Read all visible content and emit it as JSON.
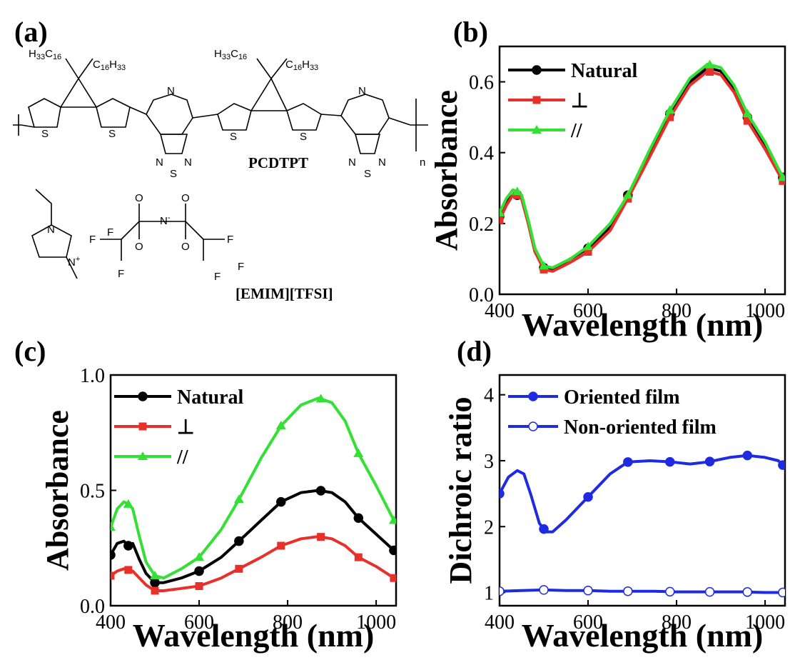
{
  "panels": {
    "a": "(a)",
    "b": "(b)",
    "c": "(c)",
    "d": "(d)"
  },
  "chemistry": {
    "polymer_name": "PCDTPT",
    "salt_name": "[EMIM][TFSI]",
    "h33c16": "H",
    "c16h33": "C",
    "sub_33": "33",
    "sub_16": "16",
    "sub_n": "n",
    "atom_S": "S",
    "atom_N": "N",
    "atom_F": "F",
    "atom_O": "O",
    "atom_Nminus": "N",
    "minus": "-",
    "plus": "+"
  },
  "colors": {
    "natural": "#000000",
    "perp": "#e8302a",
    "parallel": "#33e033",
    "oriented": "#1f2be0"
  },
  "chart_data": [
    {
      "type": "line",
      "panel": "b",
      "xlabel": "Wavelength (nm)",
      "ylabel": "Absorbance",
      "xlim": [
        400,
        1045
      ],
      "ylim": [
        0.0,
        0.7
      ],
      "xticks": [
        "400",
        "600",
        "800",
        "1000"
      ],
      "yticks": [
        "0.0",
        "0.2",
        "0.4",
        "0.6"
      ],
      "xtick_values": [
        400,
        600,
        800,
        1000
      ],
      "ytick_values": [
        0.0,
        0.2,
        0.4,
        0.6
      ],
      "legend": "top-left",
      "series": [
        {
          "name": "Natural",
          "marker": "circle",
          "color": "#000000",
          "x": [
            400,
            415,
            430,
            440,
            450,
            465,
            480,
            500,
            520,
            560,
            600,
            650,
            690,
            740,
            785,
            830,
            870,
            900,
            930,
            960,
            1000,
            1040
          ],
          "y": [
            0.22,
            0.26,
            0.28,
            0.28,
            0.27,
            0.2,
            0.12,
            0.075,
            0.07,
            0.1,
            0.13,
            0.19,
            0.28,
            0.4,
            0.51,
            0.6,
            0.64,
            0.63,
            0.58,
            0.5,
            0.42,
            0.33
          ],
          "marker_x": [
            400,
            440,
            500,
            600,
            690,
            785,
            875,
            960,
            1040
          ]
        },
        {
          "name": "⊥",
          "marker": "square",
          "color": "#e8302a",
          "x": [
            400,
            415,
            430,
            440,
            450,
            465,
            480,
            500,
            520,
            560,
            600,
            650,
            690,
            740,
            785,
            830,
            870,
            900,
            930,
            960,
            1000,
            1040
          ],
          "y": [
            0.21,
            0.25,
            0.28,
            0.28,
            0.27,
            0.2,
            0.12,
            0.07,
            0.065,
            0.09,
            0.12,
            0.18,
            0.27,
            0.39,
            0.5,
            0.59,
            0.63,
            0.62,
            0.57,
            0.49,
            0.41,
            0.32
          ],
          "marker_x": [
            400,
            440,
            500,
            600,
            690,
            785,
            875,
            960,
            1040
          ]
        },
        {
          "name": "//",
          "marker": "triangle",
          "color": "#33e033",
          "x": [
            400,
            415,
            430,
            440,
            450,
            465,
            480,
            500,
            520,
            560,
            600,
            650,
            690,
            740,
            785,
            830,
            870,
            900,
            930,
            960,
            1000,
            1040
          ],
          "y": [
            0.23,
            0.27,
            0.295,
            0.29,
            0.28,
            0.21,
            0.13,
            0.08,
            0.075,
            0.1,
            0.135,
            0.2,
            0.28,
            0.41,
            0.52,
            0.61,
            0.65,
            0.64,
            0.59,
            0.51,
            0.43,
            0.33
          ],
          "marker_x": [
            400,
            440,
            500,
            600,
            690,
            785,
            875,
            960,
            1040
          ]
        }
      ]
    },
    {
      "type": "line",
      "panel": "c",
      "xlabel": "Wavelength (nm)",
      "ylabel": "Absorbance",
      "xlim": [
        400,
        1045
      ],
      "ylim": [
        0.0,
        1.0
      ],
      "xticks": [
        "400",
        "600",
        "800",
        "1000"
      ],
      "yticks": [
        "0.0",
        "0.5",
        "1.0"
      ],
      "xtick_values": [
        400,
        600,
        800,
        1000
      ],
      "ytick_values": [
        0.0,
        0.5,
        1.0
      ],
      "legend": "top-left",
      "series": [
        {
          "name": "Natural",
          "marker": "circle",
          "color": "#000000",
          "x": [
            400,
            415,
            430,
            440,
            450,
            465,
            480,
            500,
            520,
            560,
            600,
            650,
            690,
            740,
            785,
            830,
            870,
            900,
            930,
            960,
            1000,
            1040
          ],
          "y": [
            0.22,
            0.27,
            0.28,
            0.26,
            0.27,
            0.2,
            0.14,
            0.1,
            0.1,
            0.12,
            0.15,
            0.21,
            0.28,
            0.37,
            0.45,
            0.49,
            0.5,
            0.49,
            0.45,
            0.38,
            0.31,
            0.24
          ],
          "marker_x": [
            400,
            440,
            500,
            600,
            690,
            785,
            875,
            960,
            1040
          ]
        },
        {
          "name": "⊥",
          "marker": "square",
          "color": "#e8302a",
          "x": [
            400,
            415,
            430,
            440,
            450,
            465,
            480,
            500,
            520,
            560,
            600,
            650,
            690,
            740,
            785,
            830,
            870,
            900,
            930,
            960,
            1000,
            1040
          ],
          "y": [
            0.13,
            0.15,
            0.16,
            0.155,
            0.15,
            0.12,
            0.09,
            0.065,
            0.065,
            0.075,
            0.085,
            0.12,
            0.16,
            0.21,
            0.26,
            0.29,
            0.3,
            0.29,
            0.26,
            0.21,
            0.17,
            0.12
          ],
          "marker_x": [
            400,
            440,
            500,
            600,
            690,
            785,
            875,
            960,
            1040
          ]
        },
        {
          "name": "//",
          "marker": "triangle",
          "color": "#33e033",
          "x": [
            400,
            415,
            430,
            440,
            450,
            465,
            480,
            500,
            520,
            560,
            600,
            650,
            690,
            740,
            785,
            830,
            870,
            900,
            930,
            960,
            1000,
            1040
          ],
          "y": [
            0.34,
            0.42,
            0.45,
            0.44,
            0.42,
            0.3,
            0.19,
            0.13,
            0.12,
            0.16,
            0.21,
            0.33,
            0.46,
            0.64,
            0.78,
            0.87,
            0.9,
            0.88,
            0.8,
            0.66,
            0.52,
            0.37
          ],
          "marker_x": [
            400,
            440,
            500,
            600,
            690,
            785,
            875,
            960,
            1040
          ]
        }
      ]
    },
    {
      "type": "line",
      "panel": "d",
      "xlabel": "Wavelength (nm)",
      "ylabel": "Dichroic ratio",
      "xlim": [
        400,
        1045
      ],
      "ylim": [
        0.8,
        4.3
      ],
      "xticks": [
        "400",
        "600",
        "800",
        "1000"
      ],
      "yticks": [
        "1",
        "2",
        "3",
        "4"
      ],
      "xtick_values": [
        400,
        600,
        800,
        1000
      ],
      "ytick_values": [
        1,
        2,
        3,
        4
      ],
      "legend": "top-left",
      "series": [
        {
          "name": "Oriented film",
          "marker": "filled-circle",
          "color": "#1f2be0",
          "x": [
            400,
            420,
            440,
            455,
            470,
            490,
            505,
            520,
            550,
            600,
            650,
            690,
            740,
            790,
            830,
            870,
            920,
            960,
            1000,
            1030,
            1045
          ],
          "y": [
            2.5,
            2.75,
            2.85,
            2.8,
            2.5,
            2.05,
            1.92,
            1.92,
            2.1,
            2.45,
            2.8,
            2.98,
            3.0,
            2.98,
            2.95,
            2.98,
            3.05,
            3.08,
            3.05,
            3.0,
            2.9
          ],
          "marker_x": [
            400,
            500,
            600,
            690,
            785,
            875,
            960,
            1040
          ]
        },
        {
          "name": "Non-oriented film",
          "marker": "open-circle",
          "color": "#1f2be0",
          "x": [
            400,
            450,
            500,
            550,
            600,
            650,
            700,
            750,
            800,
            850,
            900,
            950,
            1000,
            1045
          ],
          "y": [
            1.02,
            1.03,
            1.04,
            1.03,
            1.03,
            1.02,
            1.02,
            1.02,
            1.01,
            1.01,
            1.01,
            1.01,
            1.0,
            1.0
          ],
          "marker_x": [
            400,
            500,
            600,
            690,
            785,
            875,
            960,
            1040
          ]
        }
      ]
    }
  ]
}
